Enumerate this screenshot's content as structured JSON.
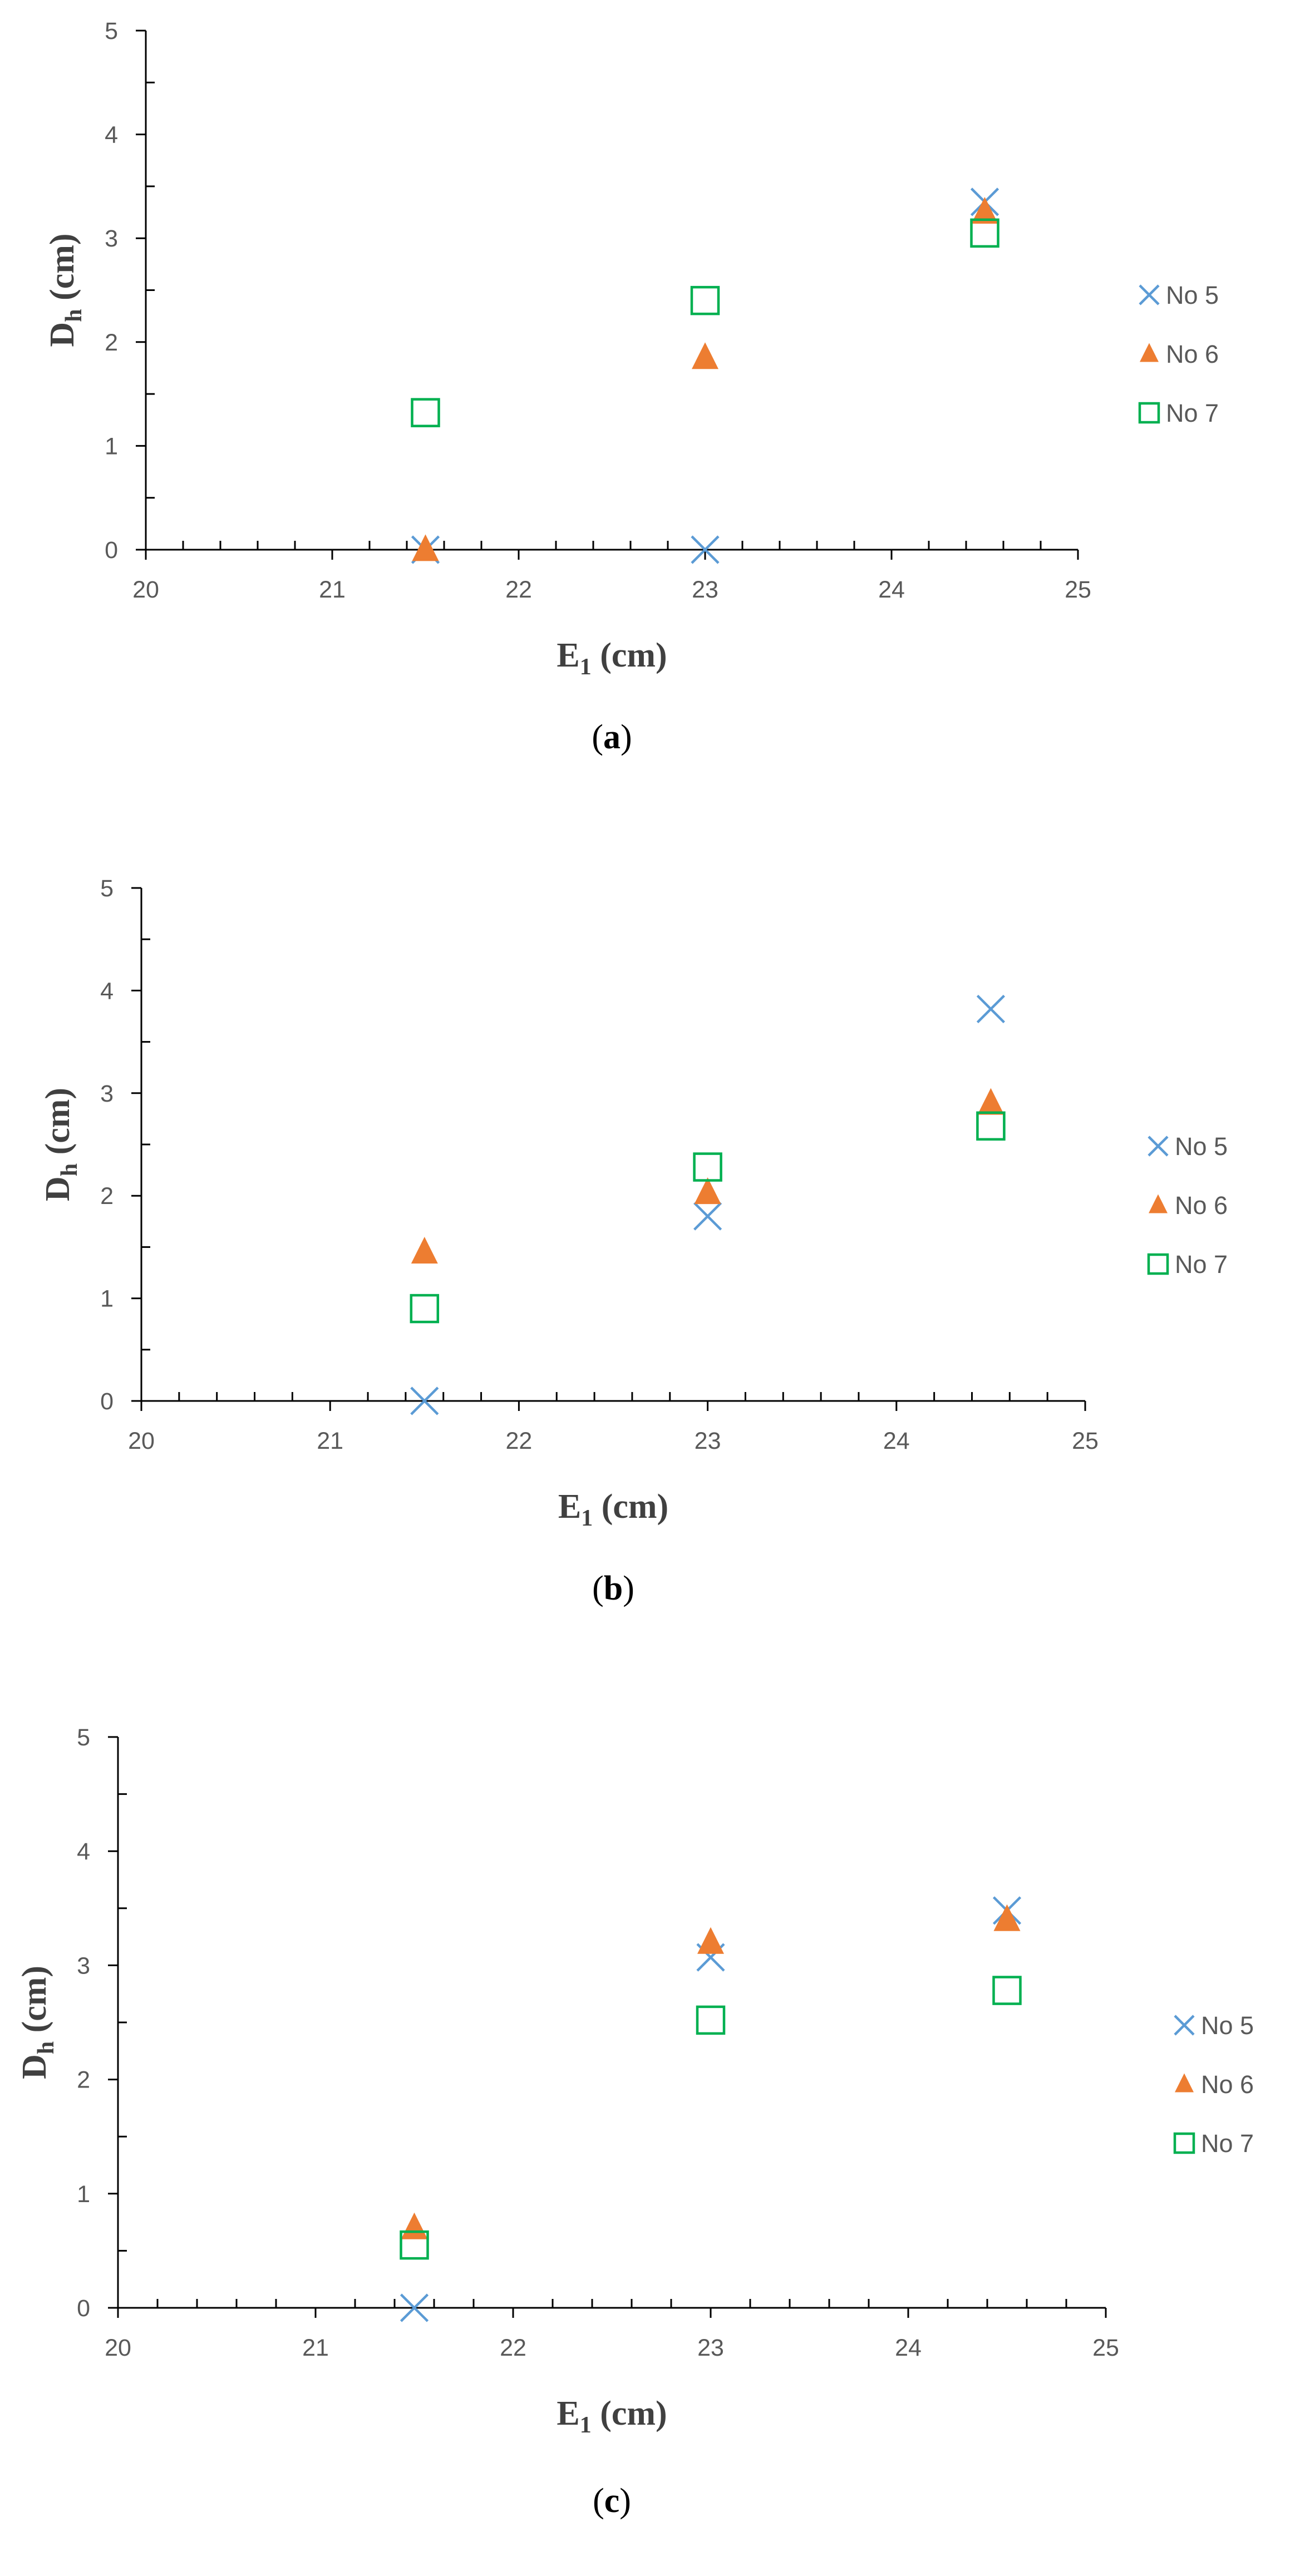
{
  "colors": {
    "no5": "#5b9bd5",
    "no6": "#ed7d31",
    "no7": "#00b050",
    "axis": "#000000",
    "tick_text": "#595959"
  },
  "chart_data": [
    {
      "type": "scatter",
      "panel": "a",
      "caption": {
        "open": "(",
        "letter": "a",
        "close": ")"
      },
      "xlabel": {
        "main": "E",
        "sub": "1",
        "unit": " (cm)"
      },
      "ylabel": {
        "main": "D",
        "sub": "h",
        "unit": " (cm)"
      },
      "xlim": [
        20,
        25
      ],
      "ylim": [
        0,
        5
      ],
      "xticks": [
        "20",
        "21",
        "22",
        "23",
        "24",
        "25"
      ],
      "yticks": [
        "0",
        "1",
        "2",
        "3",
        "4",
        "5"
      ],
      "grid": false,
      "legend_position": "right",
      "series": [
        {
          "name": "No 5",
          "marker": "x-mark",
          "points": [
            [
              21.5,
              0.0
            ],
            [
              23.0,
              0.0
            ],
            [
              24.5,
              3.35
            ]
          ]
        },
        {
          "name": "No 6",
          "marker": "filled-triangle",
          "points": [
            [
              21.5,
              0.0
            ],
            [
              23.0,
              1.85
            ],
            [
              24.5,
              3.25
            ]
          ]
        },
        {
          "name": "No 7",
          "marker": "open-square",
          "points": [
            [
              21.5,
              1.32
            ],
            [
              23.0,
              2.4
            ],
            [
              24.5,
              3.05
            ]
          ]
        }
      ]
    },
    {
      "type": "scatter",
      "panel": "b",
      "caption": {
        "open": "(",
        "letter": "b",
        "close": ")"
      },
      "xlabel": {
        "main": "E",
        "sub": "1",
        "unit": " (cm)"
      },
      "ylabel": {
        "main": "D",
        "sub": "h",
        "unit": " (cm)"
      },
      "xlim": [
        20,
        25
      ],
      "ylim": [
        0,
        5
      ],
      "xticks": [
        "20",
        "21",
        "22",
        "23",
        "24",
        "25"
      ],
      "yticks": [
        "0",
        "1",
        "2",
        "3",
        "4",
        "5"
      ],
      "grid": false,
      "legend_position": "right",
      "series": [
        {
          "name": "No 5",
          "marker": "x-mark",
          "points": [
            [
              21.5,
              0.0
            ],
            [
              23.0,
              1.8
            ],
            [
              24.5,
              3.82
            ]
          ]
        },
        {
          "name": "No 6",
          "marker": "filled-triangle",
          "points": [
            [
              21.5,
              1.45
            ],
            [
              23.0,
              2.03
            ],
            [
              24.5,
              2.9
            ]
          ]
        },
        {
          "name": "No 7",
          "marker": "open-square",
          "points": [
            [
              21.5,
              0.9
            ],
            [
              23.0,
              2.28
            ],
            [
              24.5,
              2.68
            ]
          ]
        }
      ]
    },
    {
      "type": "scatter",
      "panel": "c",
      "caption": {
        "open": "(",
        "letter": "c",
        "close": ")"
      },
      "xlabel": {
        "main": "E",
        "sub": "1",
        "unit": " (cm)"
      },
      "ylabel": {
        "main": "D",
        "sub": "h",
        "unit": " (cm)"
      },
      "xlim": [
        20,
        25
      ],
      "ylim": [
        0,
        5
      ],
      "xticks": [
        "20",
        "21",
        "22",
        "23",
        "24",
        "25"
      ],
      "yticks": [
        "0",
        "1",
        "2",
        "3",
        "4",
        "5"
      ],
      "grid": false,
      "legend_position": "right",
      "series": [
        {
          "name": "No 5",
          "marker": "x-mark",
          "points": [
            [
              21.5,
              0.0
            ],
            [
              23.0,
              3.07
            ],
            [
              24.5,
              3.48
            ]
          ]
        },
        {
          "name": "No 6",
          "marker": "filled-triangle",
          "points": [
            [
              21.5,
              0.7
            ],
            [
              23.0,
              3.2
            ],
            [
              24.5,
              3.4
            ]
          ]
        },
        {
          "name": "No 7",
          "marker": "open-square",
          "points": [
            [
              21.5,
              0.55
            ],
            [
              23.0,
              2.52
            ],
            [
              24.5,
              2.78
            ]
          ]
        }
      ]
    }
  ]
}
